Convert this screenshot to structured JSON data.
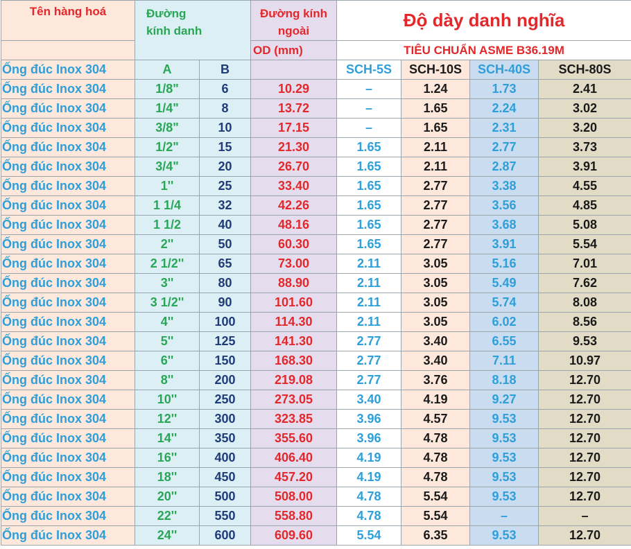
{
  "header": {
    "product_name": "Tên hàng hoá",
    "nominal_diameter": [
      "Đường",
      "kính danh"
    ],
    "outer_diameter": [
      "Đường kính",
      "ngoài"
    ],
    "od_unit": "OD (mm)",
    "thickness_title": "Độ dày  danh nghĩa",
    "standard": "TIÊU CHUẨN ASME B36.19M"
  },
  "subheader": {
    "name": "Ống đúc Inox 304",
    "col_a": "A",
    "col_b": "B",
    "sch_5s": "SCH-5S",
    "sch_10s": "SCH-10S",
    "sch_40s": "SCH-40S",
    "sch_80s": "SCH-80S"
  },
  "rows": [
    {
      "name": "Ống đúc Inox 304",
      "a": "1/8\"",
      "b": "6",
      "od": "10.29",
      "s5": "–",
      "s10": "1.24",
      "s40": "1.73",
      "s80": "2.41"
    },
    {
      "name": "Ống đúc Inox 304",
      "a": "1/4\"",
      "b": "8",
      "od": "13.72",
      "s5": "–",
      "s10": "1.65",
      "s40": "2.24",
      "s80": "3.02"
    },
    {
      "name": "Ống đúc Inox 304",
      "a": "3/8\"",
      "b": "10",
      "od": "17.15",
      "s5": "–",
      "s10": "1.65",
      "s40": "2.31",
      "s80": "3.20"
    },
    {
      "name": "Ống đúc Inox 304",
      "a": "1/2\"",
      "b": "15",
      "od": "21.30",
      "s5": "1.65",
      "s10": "2.11",
      "s40": "2.77",
      "s80": "3.73"
    },
    {
      "name": "Ống đúc Inox 304",
      "a": "3/4\"",
      "b": "20",
      "od": "26.70",
      "s5": "1.65",
      "s10": "2.11",
      "s40": "2.87",
      "s80": "3.91"
    },
    {
      "name": "Ống đúc Inox 304",
      "a": "1''",
      "b": "25",
      "od": "33.40",
      "s5": "1.65",
      "s10": "2.77",
      "s40": "3.38",
      "s80": "4.55"
    },
    {
      "name": "Ống đúc Inox 304",
      "a": "1 1/4",
      "b": "32",
      "od": "42.26",
      "s5": "1.65",
      "s10": "2.77",
      "s40": "3.56",
      "s80": "4.85"
    },
    {
      "name": "Ống đúc Inox 304",
      "a": "1 1/2",
      "b": "40",
      "od": "48.16",
      "s5": "1.65",
      "s10": "2.77",
      "s40": "3.68",
      "s80": "5.08"
    },
    {
      "name": "Ống đúc Inox 304",
      "a": "2''",
      "b": "50",
      "od": "60.30",
      "s5": "1.65",
      "s10": "2.77",
      "s40": "3.91",
      "s80": "5.54"
    },
    {
      "name": "Ống đúc Inox 304",
      "a": "2 1/2''",
      "b": "65",
      "od": "73.00",
      "s5": "2.11",
      "s10": "3.05",
      "s40": "5.16",
      "s80": "7.01"
    },
    {
      "name": "Ống đúc Inox 304",
      "a": "3''",
      "b": "80",
      "od": "88.90",
      "s5": "2.11",
      "s10": "3.05",
      "s40": "5.49",
      "s80": "7.62"
    },
    {
      "name": "Ống đúc Inox 304",
      "a": "3 1/2''",
      "b": "90",
      "od": "101.60",
      "s5": "2.11",
      "s10": "3.05",
      "s40": "5.74",
      "s80": "8.08"
    },
    {
      "name": "Ống đúc Inox 304",
      "a": "4''",
      "b": "100",
      "od": "114.30",
      "s5": "2.11",
      "s10": "3.05",
      "s40": "6.02",
      "s80": "8.56"
    },
    {
      "name": "Ống đúc Inox 304",
      "a": "5''",
      "b": "125",
      "od": "141.30",
      "s5": "2.77",
      "s10": "3.40",
      "s40": "6.55",
      "s80": "9.53"
    },
    {
      "name": "Ống đúc Inox 304",
      "a": "6''",
      "b": "150",
      "od": "168.30",
      "s5": "2.77",
      "s10": "3.40",
      "s40": "7.11",
      "s80": "10.97"
    },
    {
      "name": "Ống đúc Inox 304",
      "a": "8''",
      "b": "200",
      "od": "219.08",
      "s5": "2.77",
      "s10": "3.76",
      "s40": "8.18",
      "s80": "12.70"
    },
    {
      "name": "Ống đúc Inox 304",
      "a": "10''",
      "b": "250",
      "od": "273.05",
      "s5": "3.40",
      "s10": "4.19",
      "s40": "9.27",
      "s80": "12.70"
    },
    {
      "name": "Ống đúc Inox 304",
      "a": "12''",
      "b": "300",
      "od": "323.85",
      "s5": "3.96",
      "s10": "4.57",
      "s40": "9.53",
      "s80": "12.70"
    },
    {
      "name": "Ống đúc Inox 304",
      "a": "14''",
      "b": "350",
      "od": "355.60",
      "s5": "3.96",
      "s10": "4.78",
      "s40": "9.53",
      "s80": "12.70"
    },
    {
      "name": "Ống đúc Inox 304",
      "a": "16''",
      "b": "400",
      "od": "406.40",
      "s5": "4.19",
      "s10": "4.78",
      "s40": "9.53",
      "s80": "12.70"
    },
    {
      "name": "Ống đúc Inox 304",
      "a": "18''",
      "b": "450",
      "od": "457.20",
      "s5": "4.19",
      "s10": "4.78",
      "s40": "9.53",
      "s80": "12.70"
    },
    {
      "name": "Ống đúc Inox 304",
      "a": "20''",
      "b": "500",
      "od": "508.00",
      "s5": "4.78",
      "s10": "5.54",
      "s40": "9.53",
      "s80": "12.70"
    },
    {
      "name": "Ống đúc Inox 304",
      "a": "22''",
      "b": "550",
      "od": "558.80",
      "s5": "4.78",
      "s10": "5.54",
      "s40": "–",
      "s80": "–"
    },
    {
      "name": "Ống đúc Inox 304",
      "a": "24''",
      "b": "600",
      "od": "609.60",
      "s5": "5.54",
      "s10": "6.35",
      "s40": "9.53",
      "s80": "12.70"
    }
  ]
}
